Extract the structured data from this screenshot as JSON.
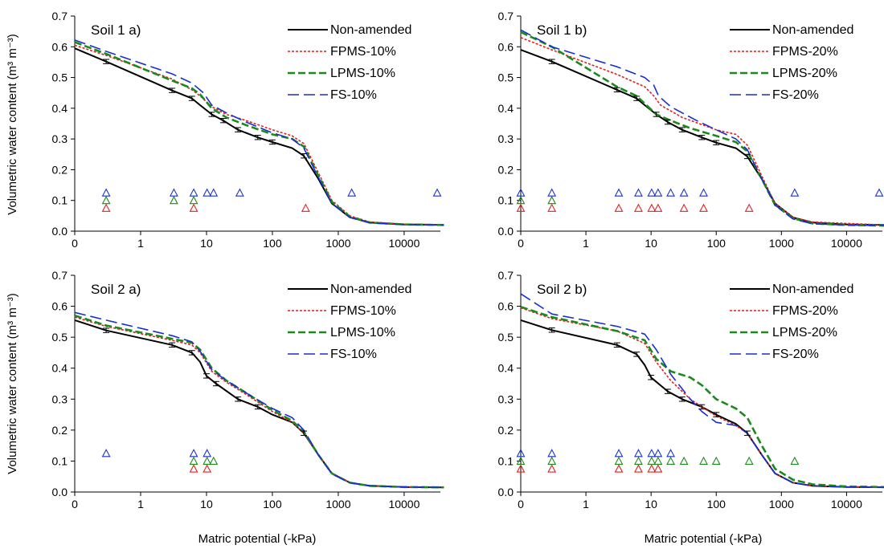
{
  "figure": {
    "y_axis_title": "Volumetric water content (m³ m⁻³)",
    "x_axis_title": "Matric potential (-kPa)"
  },
  "chart_data": [
    {
      "type": "line",
      "title": "Soil 1 a)",
      "xlabel": "Matric potential (-kPa)",
      "ylabel": "Volumetric water content (m³ m⁻³)",
      "xscale": "log (0 drawn at left edge)",
      "xticks": [
        "0",
        "1",
        "10",
        "100",
        "1000",
        "10000"
      ],
      "yticks": [
        "0.0",
        "0.1",
        "0.2",
        "0.3",
        "0.4",
        "0.5",
        "0.6",
        "0.7"
      ],
      "ylim": [
        0,
        0.7
      ],
      "legend_position": "top-right",
      "series": [
        {
          "name": "Non-amended",
          "color": "#000000",
          "style": "solid",
          "x": [
            0.1,
            0.3,
            3,
            6,
            8,
            12,
            18,
            30,
            60,
            100,
            200,
            300,
            500,
            800,
            1500,
            3000,
            10000,
            40000
          ],
          "y": [
            0.595,
            0.552,
            0.458,
            0.432,
            0.41,
            0.38,
            0.36,
            0.33,
            0.305,
            0.29,
            0.27,
            0.245,
            0.17,
            0.09,
            0.045,
            0.028,
            0.022,
            0.02
          ]
        },
        {
          "name": "FPMS-10%",
          "color": "#e02020",
          "style": "dotted",
          "x": [
            0.1,
            0.3,
            3,
            6,
            8,
            12,
            20,
            40,
            100,
            200,
            300,
            500,
            800,
            1500,
            3000,
            10000,
            40000
          ],
          "y": [
            0.605,
            0.572,
            0.495,
            0.46,
            0.44,
            0.405,
            0.38,
            0.36,
            0.33,
            0.31,
            0.285,
            0.19,
            0.1,
            0.05,
            0.03,
            0.023,
            0.021
          ]
        },
        {
          "name": "LPMS-10%",
          "color": "#1a8a1a",
          "style": "dashed",
          "x": [
            0.1,
            0.3,
            3,
            6,
            8,
            12,
            20,
            40,
            100,
            200,
            300,
            500,
            800,
            1500,
            3000,
            10000,
            40000
          ],
          "y": [
            0.615,
            0.577,
            0.49,
            0.465,
            0.445,
            0.4,
            0.37,
            0.345,
            0.315,
            0.3,
            0.275,
            0.18,
            0.095,
            0.047,
            0.028,
            0.022,
            0.02
          ]
        },
        {
          "name": "FS-10%",
          "color": "#1a2fd0",
          "style": "long-dashed",
          "x": [
            0.1,
            0.3,
            3,
            6,
            9,
            12,
            20,
            40,
            100,
            200,
            300,
            500,
            800,
            1500,
            3000,
            10000,
            40000
          ],
          "y": [
            0.622,
            0.585,
            0.512,
            0.482,
            0.45,
            0.41,
            0.385,
            0.355,
            0.32,
            0.3,
            0.27,
            0.175,
            0.09,
            0.045,
            0.027,
            0.021,
            0.02
          ]
        }
      ],
      "error_bars": {
        "x": [
          0.3,
          3,
          6,
          12,
          18,
          30,
          60,
          100,
          300
        ],
        "y": [
          0.552,
          0.458,
          0.432,
          0.38,
          0.36,
          0.33,
          0.305,
          0.29,
          0.245
        ],
        "err": 0.007
      },
      "markers": [
        {
          "color": "#e02020",
          "y": 0.075,
          "x": [
            0.3,
            6.4,
            320
          ]
        },
        {
          "color": "#1a8a1a",
          "y": 0.1,
          "x": [
            0.3,
            3.2,
            6.4
          ]
        },
        {
          "color": "#1a2fd0",
          "y": 0.125,
          "x": [
            0.3,
            3.2,
            6.4,
            10.2,
            12.8,
            32,
            1600,
            40000
          ]
        }
      ]
    },
    {
      "type": "line",
      "title": "Soil 1 b)",
      "xlabel": "Matric potential (-kPa)",
      "ylabel": "",
      "xscale": "log (0 drawn at left edge)",
      "xticks": [
        "0",
        "1",
        "10",
        "100",
        "1000",
        "10000"
      ],
      "yticks": [
        "0.0",
        "0.1",
        "0.2",
        "0.3",
        "0.4",
        "0.5",
        "0.6",
        "0.7"
      ],
      "ylim": [
        0,
        0.7
      ],
      "legend_position": "top-right",
      "series": [
        {
          "name": "Non-amended",
          "color": "#000000",
          "style": "solid",
          "x": [
            0.1,
            0.3,
            3,
            6,
            8,
            12,
            18,
            30,
            60,
            100,
            200,
            300,
            500,
            800,
            1500,
            3000,
            10000,
            40000
          ],
          "y": [
            0.59,
            0.552,
            0.46,
            0.432,
            0.41,
            0.38,
            0.355,
            0.33,
            0.305,
            0.288,
            0.27,
            0.243,
            0.17,
            0.09,
            0.045,
            0.028,
            0.022,
            0.02
          ]
        },
        {
          "name": "FPMS-20%",
          "color": "#e02020",
          "style": "dotted",
          "x": [
            0.1,
            0.3,
            3,
            8,
            11,
            14,
            30,
            100,
            200,
            300,
            500,
            800,
            1500,
            3000,
            10000,
            40000
          ],
          "y": [
            0.63,
            0.59,
            0.51,
            0.47,
            0.44,
            0.41,
            0.37,
            0.33,
            0.315,
            0.28,
            0.18,
            0.09,
            0.045,
            0.03,
            0.025,
            0.02
          ]
        },
        {
          "name": "LPMS-20%",
          "color": "#1a8a1a",
          "style": "dashed",
          "x": [
            0.1,
            0.3,
            3,
            6,
            8,
            12,
            20,
            40,
            100,
            200,
            300,
            500,
            800,
            1500,
            3000,
            10000,
            40000
          ],
          "y": [
            0.648,
            0.6,
            0.47,
            0.44,
            0.415,
            0.38,
            0.36,
            0.335,
            0.31,
            0.29,
            0.26,
            0.17,
            0.085,
            0.042,
            0.025,
            0.02,
            0.018
          ]
        },
        {
          "name": "FS-20%",
          "color": "#1a2fd0",
          "style": "long-dashed",
          "x": [
            0.1,
            0.3,
            3,
            8,
            11,
            13,
            20,
            50,
            100,
            200,
            300,
            500,
            800,
            1500,
            3000,
            10000,
            40000
          ],
          "y": [
            0.655,
            0.6,
            0.535,
            0.5,
            0.475,
            0.44,
            0.405,
            0.36,
            0.33,
            0.3,
            0.265,
            0.17,
            0.085,
            0.04,
            0.024,
            0.02,
            0.018
          ]
        }
      ],
      "error_bars": {
        "x": [
          0.3,
          3,
          6,
          12,
          18,
          30,
          60,
          100,
          300
        ],
        "y": [
          0.552,
          0.46,
          0.432,
          0.38,
          0.355,
          0.33,
          0.305,
          0.288,
          0.243
        ],
        "err": 0.007
      },
      "markers": [
        {
          "color": "#e02020",
          "y": 0.075,
          "x": [
            0.1,
            0.3,
            3.2,
            6.4,
            10.2,
            12.8,
            32,
            64,
            320
          ]
        },
        {
          "color": "#1a8a1a",
          "y": 0.1,
          "x": [
            0.1,
            0.3
          ]
        },
        {
          "color": "#1a2fd0",
          "y": 0.125,
          "x": [
            0.1,
            0.3,
            3.2,
            6.4,
            10.2,
            12.8,
            20,
            32,
            64,
            1600,
            40000
          ]
        }
      ]
    },
    {
      "type": "line",
      "title": "Soil 2 a)",
      "xlabel": "Matric potential (-kPa)",
      "ylabel": "Volumetric water content (m³ m⁻³)",
      "xscale": "log (0 drawn at left edge)",
      "xticks": [
        "0",
        "1",
        "10",
        "100",
        "1000",
        "10000"
      ],
      "yticks": [
        "0.0",
        "0.1",
        "0.2",
        "0.3",
        "0.4",
        "0.5",
        "0.6",
        "0.7"
      ],
      "ylim": [
        0,
        0.7
      ],
      "legend_position": "top-right",
      "series": [
        {
          "name": "Non-amended",
          "color": "#000000",
          "style": "solid",
          "x": [
            0.1,
            0.3,
            3,
            6,
            8,
            10,
            14,
            30,
            60,
            100,
            200,
            300,
            500,
            800,
            1500,
            3000,
            10000,
            40000
          ],
          "y": [
            0.555,
            0.522,
            0.475,
            0.45,
            0.42,
            0.375,
            0.35,
            0.3,
            0.275,
            0.25,
            0.225,
            0.19,
            0.12,
            0.06,
            0.03,
            0.02,
            0.016,
            0.015
          ]
        },
        {
          "name": "FPMS-10%",
          "color": "#e02020",
          "style": "dotted",
          "x": [
            0.1,
            0.3,
            3,
            6,
            8,
            12,
            20,
            40,
            100,
            200,
            300,
            500,
            800,
            1500,
            3000,
            10000,
            40000
          ],
          "y": [
            0.565,
            0.535,
            0.49,
            0.475,
            0.45,
            0.39,
            0.355,
            0.315,
            0.26,
            0.225,
            0.19,
            0.12,
            0.06,
            0.03,
            0.02,
            0.016,
            0.015
          ]
        },
        {
          "name": "LPMS-10%",
          "color": "#1a8a1a",
          "style": "dashed",
          "x": [
            0.1,
            0.3,
            3,
            6,
            8,
            12,
            20,
            40,
            100,
            200,
            300,
            500,
            800,
            1500,
            3000,
            10000,
            40000
          ],
          "y": [
            0.57,
            0.538,
            0.495,
            0.482,
            0.46,
            0.4,
            0.36,
            0.32,
            0.265,
            0.23,
            0.195,
            0.12,
            0.06,
            0.03,
            0.02,
            0.016,
            0.015
          ]
        },
        {
          "name": "FS-10%",
          "color": "#1a2fd0",
          "style": "long-dashed",
          "x": [
            0.1,
            0.3,
            3,
            6,
            8,
            12,
            20,
            40,
            100,
            200,
            300,
            500,
            800,
            1500,
            3000,
            10000,
            40000
          ],
          "y": [
            0.58,
            0.555,
            0.505,
            0.485,
            0.455,
            0.395,
            0.36,
            0.32,
            0.27,
            0.24,
            0.2,
            0.12,
            0.058,
            0.03,
            0.02,
            0.016,
            0.015
          ]
        }
      ],
      "error_bars": {
        "x": [
          0.3,
          3,
          6,
          10,
          14,
          30,
          60,
          300
        ],
        "y": [
          0.522,
          0.475,
          0.45,
          0.375,
          0.35,
          0.3,
          0.275,
          0.19
        ],
        "err": 0.007
      },
      "markers": [
        {
          "color": "#e02020",
          "y": 0.075,
          "x": [
            6.4,
            10.2
          ]
        },
        {
          "color": "#1a8a1a",
          "y": 0.1,
          "x": [
            6.4,
            10.2,
            12.8
          ]
        },
        {
          "color": "#1a2fd0",
          "y": 0.125,
          "x": [
            0.3,
            6.4,
            10.2
          ]
        }
      ]
    },
    {
      "type": "line",
      "title": "Soil 2 b)",
      "xlabel": "Matric potential (-kPa)",
      "ylabel": "",
      "xscale": "log (0 drawn at left edge)",
      "xticks": [
        "0",
        "1",
        "10",
        "100",
        "1000",
        "10000"
      ],
      "yticks": [
        "0.0",
        "0.1",
        "0.2",
        "0.3",
        "0.4",
        "0.5",
        "0.6",
        "0.7"
      ],
      "ylim": [
        0,
        0.7
      ],
      "legend_position": "top-right",
      "series": [
        {
          "name": "Non-amended",
          "color": "#000000",
          "style": "solid",
          "x": [
            0.1,
            0.3,
            3,
            6,
            8,
            10,
            18,
            30,
            60,
            100,
            200,
            300,
            500,
            800,
            1500,
            3000,
            10000,
            40000
          ],
          "y": [
            0.555,
            0.523,
            0.475,
            0.445,
            0.41,
            0.37,
            0.325,
            0.3,
            0.275,
            0.25,
            0.22,
            0.19,
            0.12,
            0.06,
            0.03,
            0.02,
            0.016,
            0.015
          ]
        },
        {
          "name": "FPMS-20%",
          "color": "#e02020",
          "style": "dotted",
          "x": [
            0.1,
            0.3,
            3,
            8,
            12,
            20,
            40,
            100,
            200,
            300,
            500,
            800,
            1500,
            3000,
            10000,
            40000
          ],
          "y": [
            0.595,
            0.56,
            0.52,
            0.48,
            0.42,
            0.36,
            0.3,
            0.245,
            0.215,
            0.19,
            0.12,
            0.06,
            0.03,
            0.02,
            0.016,
            0.015
          ]
        },
        {
          "name": "LPMS-20%",
          "color": "#1a8a1a",
          "style": "dashed",
          "x": [
            0.1,
            0.3,
            3,
            8,
            12,
            20,
            40,
            60,
            100,
            200,
            300,
            500,
            800,
            1500,
            3000,
            10000,
            40000
          ],
          "y": [
            0.598,
            0.565,
            0.52,
            0.49,
            0.43,
            0.39,
            0.37,
            0.345,
            0.3,
            0.27,
            0.24,
            0.15,
            0.075,
            0.04,
            0.025,
            0.018,
            0.016
          ]
        },
        {
          "name": "FS-20%",
          "color": "#1a2fd0",
          "style": "long-dashed",
          "x": [
            0.1,
            0.3,
            3,
            8,
            12,
            20,
            40,
            60,
            100,
            200,
            300,
            500,
            800,
            1500,
            3000,
            10000,
            40000
          ],
          "y": [
            0.64,
            0.575,
            0.535,
            0.51,
            0.46,
            0.38,
            0.3,
            0.26,
            0.225,
            0.215,
            0.19,
            0.12,
            0.06,
            0.03,
            0.02,
            0.016,
            0.015
          ]
        }
      ],
      "error_bars": {
        "x": [
          0.3,
          3,
          6,
          10,
          18,
          30,
          60,
          100,
          300
        ],
        "y": [
          0.523,
          0.475,
          0.445,
          0.37,
          0.325,
          0.3,
          0.275,
          0.25,
          0.19
        ],
        "err": 0.007
      },
      "markers": [
        {
          "color": "#e02020",
          "y": 0.075,
          "x": [
            0.1,
            0.3,
            3.2,
            6.4,
            10.2,
            12.8
          ]
        },
        {
          "color": "#1a8a1a",
          "y": 0.1,
          "x": [
            0.1,
            0.3,
            3.2,
            6.4,
            10.2,
            12.8,
            20,
            32,
            64,
            100,
            320,
            1600
          ]
        },
        {
          "color": "#1a2fd0",
          "y": 0.125,
          "x": [
            0.1,
            0.3,
            3.2,
            6.4,
            10.2,
            12.8,
            20
          ]
        }
      ]
    }
  ]
}
